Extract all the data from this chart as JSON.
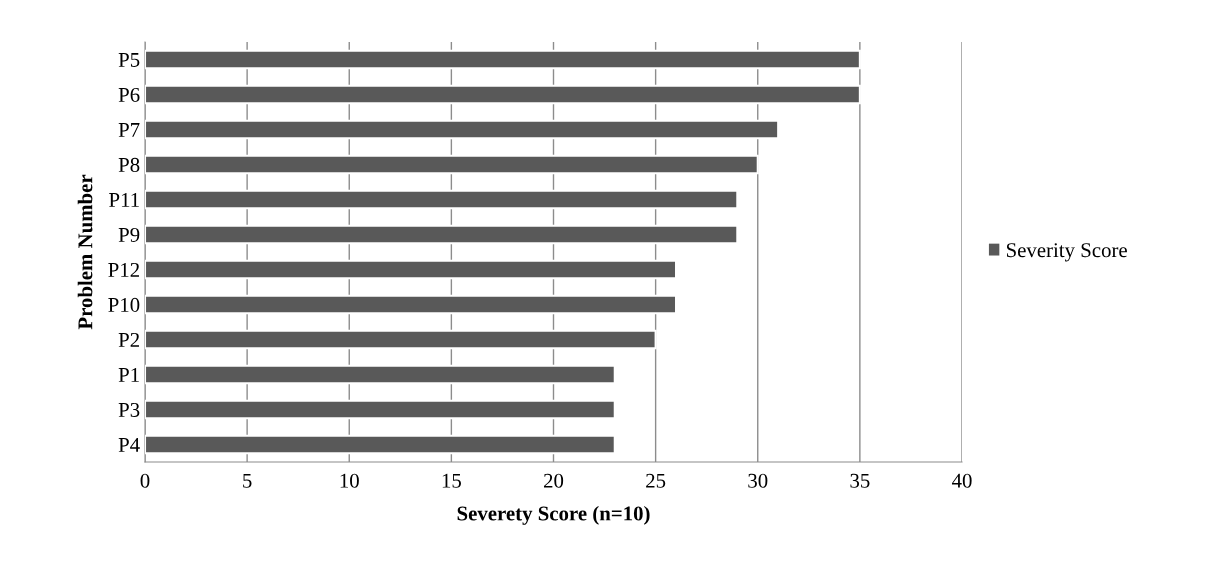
{
  "chart_data": {
    "type": "bar",
    "orientation": "horizontal",
    "xlabel": "Severety Score (n=10)",
    "ylabel": "Problem Number",
    "categories": [
      "P5",
      "P6",
      "P7",
      "P8",
      "P11",
      "P9",
      "P12",
      "P10",
      "P2",
      "P1",
      "P3",
      "P4"
    ],
    "series": [
      {
        "name": "Severity Score",
        "color": "#595959",
        "values": [
          35,
          35,
          31,
          30,
          29,
          29,
          26,
          26,
          25,
          23,
          23,
          23
        ]
      }
    ],
    "xlim": [
      0,
      40
    ],
    "xticks": [
      0,
      5,
      10,
      15,
      20,
      25,
      30,
      35,
      40
    ],
    "grid": "x",
    "legend": "right"
  }
}
